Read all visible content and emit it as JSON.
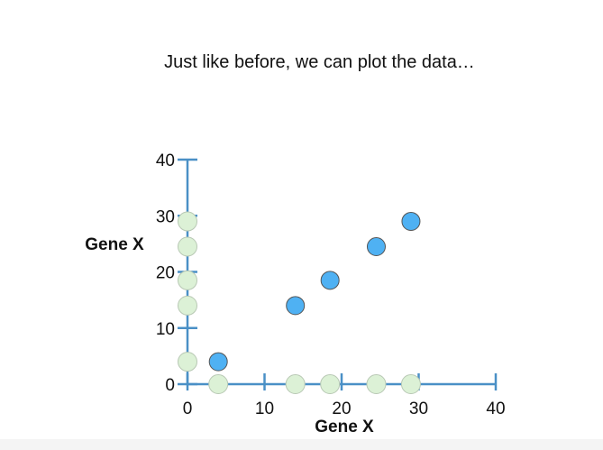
{
  "slide": {
    "caption": "Just like before, we can plot the data…"
  },
  "chart_data": {
    "type": "scatter",
    "xlabel": "Gene X",
    "ylabel": "Gene X",
    "xlim": [
      0,
      40
    ],
    "ylim": [
      0,
      40
    ],
    "xticks": [
      0,
      10,
      20,
      30,
      40
    ],
    "yticks": [
      0,
      10,
      20,
      30,
      40
    ],
    "grid": false,
    "series": [
      {
        "color": "#4fb1f3",
        "x": [
          4,
          14,
          18.5,
          24.5,
          29
        ],
        "y": [
          4,
          14,
          18.5,
          24.5,
          29
        ]
      },
      {
        "color": "#dcf1d6",
        "x": [
          0,
          0,
          0,
          0,
          0
        ],
        "y": [
          4,
          14,
          18.5,
          24.5,
          29
        ]
      },
      {
        "color": "#dcf1d6",
        "x": [
          4,
          14,
          18.5,
          24.5,
          29
        ],
        "y": [
          0,
          0,
          0,
          0,
          0
        ]
      }
    ],
    "colors": {
      "axis": "#4a90c6",
      "point_stroke": "#555555",
      "projection_stroke": "#b8c8b4"
    }
  }
}
